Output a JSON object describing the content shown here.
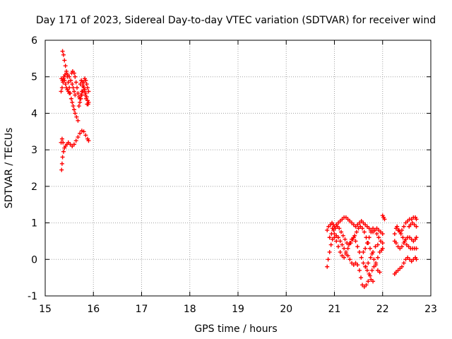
{
  "chart_data": {
    "type": "scatter",
    "title": "Day 171 of 2023, Sidereal Day-to-day VTEC variation (SDTVAR) for receiver wind",
    "xlabel": "GPS time / hours",
    "ylabel": "SDTVAR / TECUs",
    "xlim": [
      15,
      23
    ],
    "ylim": [
      -1,
      6
    ],
    "xticks": [
      "15",
      "16",
      "17",
      "18",
      "19",
      "20",
      "21",
      "22",
      "23"
    ],
    "yticks": [
      "-1",
      "0",
      "1",
      "2",
      "3",
      "4",
      "5",
      "6"
    ],
    "grid": true,
    "marker": "+",
    "color": "#ff0000",
    "series": [
      {
        "name": "SDTVAR",
        "points": [
          [
            15.34,
            2.45
          ],
          [
            15.35,
            2.62
          ],
          [
            15.36,
            2.8
          ],
          [
            15.38,
            2.95
          ],
          [
            15.4,
            3.05
          ],
          [
            15.42,
            3.1
          ],
          [
            15.45,
            3.15
          ],
          [
            15.48,
            3.2
          ],
          [
            15.52,
            3.15
          ],
          [
            15.56,
            3.1
          ],
          [
            15.6,
            3.15
          ],
          [
            15.64,
            3.25
          ],
          [
            15.68,
            3.35
          ],
          [
            15.72,
            3.45
          ],
          [
            15.76,
            3.52
          ],
          [
            15.8,
            3.5
          ],
          [
            15.84,
            3.4
          ],
          [
            15.88,
            3.3
          ],
          [
            15.9,
            3.25
          ],
          [
            15.33,
            3.2
          ],
          [
            15.35,
            3.3
          ],
          [
            15.37,
            3.2
          ],
          [
            15.36,
            5.7
          ],
          [
            15.38,
            5.6
          ],
          [
            15.4,
            5.45
          ],
          [
            15.42,
            5.3
          ],
          [
            15.44,
            5.15
          ],
          [
            15.46,
            5.0
          ],
          [
            15.48,
            4.85
          ],
          [
            15.5,
            4.7
          ],
          [
            15.52,
            4.55
          ],
          [
            15.54,
            4.4
          ],
          [
            15.56,
            4.3
          ],
          [
            15.58,
            4.2
          ],
          [
            15.6,
            4.1
          ],
          [
            15.62,
            4.0
          ],
          [
            15.65,
            3.9
          ],
          [
            15.68,
            3.8
          ],
          [
            15.33,
            4.6
          ],
          [
            15.35,
            4.7
          ],
          [
            15.37,
            4.85
          ],
          [
            15.39,
            5.0
          ],
          [
            15.41,
            5.05
          ],
          [
            15.44,
            5.1
          ],
          [
            15.47,
            5.05
          ],
          [
            15.5,
            5.0
          ],
          [
            15.53,
            4.9
          ],
          [
            15.56,
            4.8
          ],
          [
            15.58,
            4.7
          ],
          [
            15.6,
            4.6
          ],
          [
            15.62,
            4.5
          ],
          [
            15.34,
            4.95
          ],
          [
            15.36,
            4.9
          ],
          [
            15.38,
            4.95
          ],
          [
            15.4,
            4.9
          ],
          [
            15.42,
            4.8
          ],
          [
            15.44,
            4.7
          ],
          [
            15.46,
            4.65
          ],
          [
            15.48,
            4.6
          ],
          [
            15.5,
            4.55
          ],
          [
            15.55,
            5.1
          ],
          [
            15.57,
            5.15
          ],
          [
            15.6,
            5.1
          ],
          [
            15.62,
            5.0
          ],
          [
            15.64,
            4.85
          ],
          [
            15.66,
            4.7
          ],
          [
            15.68,
            4.55
          ],
          [
            15.7,
            4.45
          ],
          [
            15.72,
            4.4
          ],
          [
            15.74,
            4.5
          ],
          [
            15.76,
            4.6
          ],
          [
            15.78,
            4.75
          ],
          [
            15.8,
            4.85
          ],
          [
            15.82,
            4.95
          ],
          [
            15.84,
            4.9
          ],
          [
            15.86,
            4.8
          ],
          [
            15.88,
            4.7
          ],
          [
            15.9,
            4.6
          ],
          [
            15.7,
            4.2
          ],
          [
            15.72,
            4.3
          ],
          [
            15.74,
            4.4
          ],
          [
            15.76,
            4.5
          ],
          [
            15.78,
            4.6
          ],
          [
            15.8,
            4.7
          ],
          [
            15.82,
            4.65
          ],
          [
            15.84,
            4.55
          ],
          [
            15.86,
            4.45
          ],
          [
            15.88,
            4.35
          ],
          [
            15.9,
            4.3
          ],
          [
            15.73,
            4.8
          ],
          [
            15.75,
            4.9
          ],
          [
            15.77,
            4.85
          ],
          [
            15.79,
            4.75
          ],
          [
            15.81,
            4.6
          ],
          [
            15.83,
            4.5
          ],
          [
            15.85,
            4.4
          ],
          [
            15.87,
            4.25
          ],
          [
            15.89,
            4.25
          ],
          [
            20.85,
            -0.2
          ],
          [
            20.87,
            0.0
          ],
          [
            20.9,
            0.2
          ],
          [
            20.93,
            0.4
          ],
          [
            20.96,
            0.55
          ],
          [
            21.0,
            0.6
          ],
          [
            21.04,
            0.65
          ],
          [
            21.08,
            0.6
          ],
          [
            21.12,
            0.5
          ],
          [
            21.16,
            0.4
          ],
          [
            21.2,
            0.3
          ],
          [
            21.24,
            0.2
          ],
          [
            21.28,
            0.1
          ],
          [
            21.32,
            0.0
          ],
          [
            21.36,
            -0.1
          ],
          [
            21.4,
            -0.15
          ],
          [
            21.44,
            -0.1
          ],
          [
            21.48,
            -0.15
          ],
          [
            21.52,
            -0.3
          ],
          [
            21.55,
            -0.5
          ],
          [
            21.58,
            -0.7
          ],
          [
            21.62,
            -0.75
          ],
          [
            21.66,
            -0.7
          ],
          [
            21.7,
            -0.6
          ],
          [
            21.74,
            -0.45
          ],
          [
            21.78,
            -0.3
          ],
          [
            21.82,
            -0.2
          ],
          [
            21.86,
            -0.1
          ],
          [
            21.9,
            0.05
          ],
          [
            21.94,
            0.2
          ],
          [
            21.98,
            0.25
          ],
          [
            22.0,
            0.3
          ],
          [
            20.85,
            0.8
          ],
          [
            20.88,
            0.9
          ],
          [
            20.92,
            0.95
          ],
          [
            20.96,
            0.85
          ],
          [
            21.0,
            0.7
          ],
          [
            21.04,
            0.5
          ],
          [
            21.08,
            0.35
          ],
          [
            21.12,
            0.2
          ],
          [
            21.16,
            0.1
          ],
          [
            21.2,
            0.05
          ],
          [
            21.24,
            0.15
          ],
          [
            21.28,
            0.3
          ],
          [
            21.32,
            0.45
          ],
          [
            21.36,
            0.55
          ],
          [
            21.4,
            0.6
          ],
          [
            21.44,
            0.5
          ],
          [
            21.48,
            0.35
          ],
          [
            21.52,
            0.2
          ],
          [
            21.56,
            0.05
          ],
          [
            21.6,
            -0.1
          ],
          [
            21.64,
            -0.2
          ],
          [
            21.68,
            -0.3
          ],
          [
            21.72,
            -0.4
          ],
          [
            21.76,
            -0.55
          ],
          [
            21.8,
            -0.6
          ],
          [
            20.95,
            1.0
          ],
          [
            20.98,
            0.95
          ],
          [
            21.0,
            0.9
          ],
          [
            21.04,
            0.95
          ],
          [
            21.08,
            1.0
          ],
          [
            21.12,
            1.05
          ],
          [
            21.16,
            1.1
          ],
          [
            21.2,
            1.15
          ],
          [
            21.24,
            1.15
          ],
          [
            21.28,
            1.1
          ],
          [
            21.32,
            1.05
          ],
          [
            21.36,
            1.0
          ],
          [
            21.4,
            0.95
          ],
          [
            21.44,
            0.9
          ],
          [
            21.48,
            0.95
          ],
          [
            21.52,
            1.0
          ],
          [
            21.56,
            1.05
          ],
          [
            21.6,
            1.0
          ],
          [
            21.64,
            0.95
          ],
          [
            21.68,
            0.9
          ],
          [
            21.72,
            0.85
          ],
          [
            21.76,
            0.8
          ],
          [
            21.8,
            0.75
          ],
          [
            21.84,
            0.8
          ],
          [
            21.88,
            0.85
          ],
          [
            21.92,
            0.8
          ],
          [
            21.96,
            0.75
          ],
          [
            22.0,
            0.7
          ],
          [
            20.9,
            0.6
          ],
          [
            20.94,
            0.7
          ],
          [
            20.98,
            0.8
          ],
          [
            21.02,
            0.85
          ],
          [
            21.06,
            0.9
          ],
          [
            21.1,
            0.85
          ],
          [
            21.14,
            0.75
          ],
          [
            21.18,
            0.65
          ],
          [
            21.22,
            0.55
          ],
          [
            21.26,
            0.45
          ],
          [
            21.3,
            0.4
          ],
          [
            21.34,
            0.45
          ],
          [
            21.38,
            0.55
          ],
          [
            21.42,
            0.65
          ],
          [
            21.46,
            0.75
          ],
          [
            21.5,
            0.85
          ],
          [
            21.54,
            0.9
          ],
          [
            21.58,
            0.85
          ],
          [
            21.62,
            0.75
          ],
          [
            21.66,
            0.6
          ],
          [
            21.7,
            0.45
          ],
          [
            21.74,
            0.3
          ],
          [
            21.78,
            0.15
          ],
          [
            21.82,
            0.0
          ],
          [
            21.86,
            -0.15
          ],
          [
            21.9,
            -0.3
          ],
          [
            21.94,
            -0.35
          ],
          [
            21.6,
            0.2
          ],
          [
            21.64,
            0.3
          ],
          [
            21.68,
            0.45
          ],
          [
            21.72,
            0.6
          ],
          [
            21.76,
            0.75
          ],
          [
            21.8,
            0.85
          ],
          [
            21.84,
            0.8
          ],
          [
            21.88,
            0.7
          ],
          [
            21.92,
            0.6
          ],
          [
            21.96,
            0.5
          ],
          [
            22.0,
            0.45
          ],
          [
            21.65,
            -0.2
          ],
          [
            21.7,
            -0.1
          ],
          [
            21.75,
            0.05
          ],
          [
            21.8,
            0.2
          ],
          [
            21.85,
            0.35
          ],
          [
            21.9,
            0.4
          ],
          [
            22.0,
            1.2
          ],
          [
            22.02,
            1.15
          ],
          [
            22.04,
            1.1
          ],
          [
            22.25,
            0.7
          ],
          [
            22.28,
            0.85
          ],
          [
            22.32,
            0.8
          ],
          [
            22.36,
            0.75
          ],
          [
            22.4,
            0.8
          ],
          [
            22.44,
            0.9
          ],
          [
            22.48,
            1.0
          ],
          [
            22.52,
            1.05
          ],
          [
            22.56,
            1.1
          ],
          [
            22.6,
            1.1
          ],
          [
            22.64,
            1.15
          ],
          [
            22.68,
            1.15
          ],
          [
            22.7,
            1.1
          ],
          [
            22.25,
            0.5
          ],
          [
            22.28,
            0.45
          ],
          [
            22.32,
            0.35
          ],
          [
            22.36,
            0.3
          ],
          [
            22.4,
            0.35
          ],
          [
            22.44,
            0.45
          ],
          [
            22.48,
            0.55
          ],
          [
            22.52,
            0.6
          ],
          [
            22.56,
            0.6
          ],
          [
            22.6,
            0.55
          ],
          [
            22.64,
            0.5
          ],
          [
            22.68,
            0.55
          ],
          [
            22.7,
            0.6
          ],
          [
            22.25,
            -0.4
          ],
          [
            22.28,
            -0.35
          ],
          [
            22.32,
            -0.3
          ],
          [
            22.36,
            -0.25
          ],
          [
            22.4,
            -0.2
          ],
          [
            22.44,
            -0.1
          ],
          [
            22.48,
            0.0
          ],
          [
            22.52,
            0.05
          ],
          [
            22.56,
            0.0
          ],
          [
            22.6,
            -0.05
          ],
          [
            22.64,
            0.0
          ],
          [
            22.68,
            0.05
          ],
          [
            22.7,
            0.0
          ],
          [
            22.3,
            0.9
          ],
          [
            22.34,
            0.8
          ],
          [
            22.38,
            0.7
          ],
          [
            22.42,
            0.6
          ],
          [
            22.46,
            0.5
          ],
          [
            22.5,
            0.4
          ],
          [
            22.54,
            0.35
          ],
          [
            22.58,
            0.3
          ],
          [
            22.62,
            0.3
          ],
          [
            22.66,
            0.3
          ],
          [
            22.7,
            0.3
          ],
          [
            22.55,
            0.9
          ],
          [
            22.58,
            0.95
          ],
          [
            22.62,
            1.0
          ],
          [
            22.66,
            0.95
          ],
          [
            22.7,
            0.9
          ]
        ]
      }
    ]
  }
}
